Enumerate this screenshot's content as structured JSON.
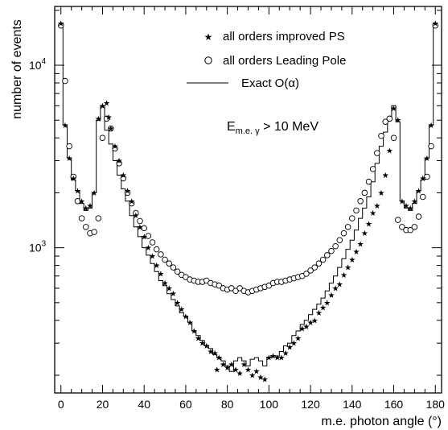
{
  "chart_data": {
    "type": "scatter",
    "xlabel": "m.e. photon angle (°)",
    "ylabel": "number of events",
    "xlim": [
      -3,
      183
    ],
    "ylim": [
      160,
      21000
    ],
    "yscale": "log",
    "x_ticks": [
      0,
      20,
      40,
      60,
      80,
      100,
      120,
      140,
      160,
      180
    ],
    "y_tick_labels": [
      {
        "value": 1000,
        "base": "10",
        "exp": "3"
      },
      {
        "value": 10000,
        "base": "10",
        "exp": "4"
      }
    ],
    "legend": {
      "placement": "top-right",
      "entries": [
        {
          "marker": "★",
          "label": "all orders improved PS"
        },
        {
          "marker": "○",
          "label": "all orders Leading Pole"
        },
        {
          "marker": "line",
          "label": "Exact O(α)"
        }
      ]
    },
    "annotation": {
      "text": "E",
      "subscript": "m.e. γ",
      "rest": " > 10 MeV"
    },
    "series": [
      {
        "name": "Exact O(α)",
        "style": "histogram",
        "edges": [
          -1,
          1,
          3,
          5,
          7,
          9,
          11,
          13,
          15,
          17,
          19,
          21,
          23,
          25,
          27,
          29,
          31,
          33,
          35,
          37,
          39,
          41,
          43,
          45,
          47,
          49,
          51,
          53,
          55,
          57,
          59,
          61,
          63,
          65,
          67,
          69,
          71,
          73,
          75,
          77,
          79,
          81,
          83,
          85,
          87,
          89,
          91,
          93,
          95,
          97,
          99,
          101,
          103,
          105,
          107,
          109,
          111,
          113,
          115,
          117,
          119,
          121,
          123,
          125,
          127,
          129,
          131,
          133,
          135,
          137,
          139,
          141,
          143,
          145,
          147,
          149,
          151,
          153,
          155,
          157,
          159,
          161,
          163,
          165,
          167,
          169,
          171,
          173,
          175,
          177,
          179,
          181
        ],
        "values": [
          17000,
          4700,
          3100,
          2350,
          2050,
          1750,
          1600,
          1650,
          2000,
          5000,
          6000,
          4400,
          3700,
          3000,
          2500,
          2100,
          1800,
          1500,
          1300,
          1150,
          1000,
          910,
          820,
          740,
          660,
          620,
          560,
          520,
          480,
          440,
          420,
          390,
          350,
          330,
          310,
          290,
          280,
          260,
          250,
          240,
          225,
          210,
          240,
          250,
          240,
          225,
          245,
          250,
          240,
          225,
          250,
          255,
          255,
          270,
          290,
          300,
          330,
          350,
          380,
          400,
          430,
          460,
          490,
          530,
          580,
          640,
          700,
          780,
          870,
          980,
          1100,
          1250,
          1450,
          1650,
          1900,
          2300,
          2900,
          3600,
          4300,
          5000,
          6000,
          4900,
          1800,
          1650,
          1600,
          1750,
          2050,
          2350,
          3100,
          4700,
          17000
        ]
      },
      {
        "name": "all orders improved PS",
        "style": "star",
        "x": [
          0,
          2,
          4,
          6,
          8,
          10,
          12,
          14,
          16,
          18,
          20,
          22,
          23,
          24,
          26,
          28,
          30,
          32,
          34,
          36,
          38,
          40,
          42,
          44,
          46,
          48,
          50,
          52,
          54,
          56,
          58,
          60,
          62,
          64,
          66,
          68,
          70,
          72,
          74,
          75,
          76,
          78,
          80,
          82,
          84,
          86,
          88,
          90,
          92,
          94,
          96,
          98,
          100,
          102,
          104,
          106,
          108,
          110,
          112,
          114,
          116,
          118,
          120,
          122,
          124,
          126,
          128,
          130,
          132,
          134,
          136,
          138,
          140,
          142,
          144,
          146,
          148,
          150,
          152,
          154,
          156,
          158,
          160,
          162,
          164,
          166,
          168,
          170,
          172,
          174,
          176,
          178,
          180
        ],
        "y": [
          17000,
          4700,
          3100,
          2400,
          2050,
          1800,
          1650,
          1700,
          2000,
          5100,
          6000,
          6200,
          5200,
          4500,
          3600,
          3000,
          2500,
          2050,
          1800,
          1500,
          1300,
          1150,
          1000,
          900,
          800,
          720,
          640,
          600,
          560,
          500,
          460,
          420,
          390,
          350,
          320,
          300,
          290,
          270,
          265,
          215,
          250,
          230,
          220,
          230,
          215,
          205,
          230,
          215,
          200,
          210,
          195,
          190,
          250,
          255,
          250,
          250,
          265,
          285,
          300,
          320,
          360,
          370,
          390,
          400,
          440,
          470,
          500,
          550,
          600,
          630,
          710,
          780,
          860,
          950,
          1050,
          1200,
          1350,
          1550,
          1700,
          2000,
          2500,
          3400,
          5800,
          5000,
          1800,
          1700,
          1650,
          1800,
          2050,
          2400,
          3100,
          4700,
          17000
        ]
      },
      {
        "name": "all orders Leading Pole",
        "style": "circle",
        "x": [
          0,
          2,
          4,
          6,
          8,
          10,
          12,
          14,
          16,
          18,
          20,
          22,
          24,
          26,
          28,
          30,
          32,
          34,
          36,
          38,
          40,
          42,
          44,
          46,
          48,
          50,
          52,
          54,
          56,
          58,
          60,
          62,
          64,
          66,
          68,
          70,
          72,
          74,
          76,
          78,
          80,
          82,
          84,
          86,
          88,
          90,
          92,
          94,
          96,
          98,
          100,
          102,
          104,
          106,
          108,
          110,
          112,
          114,
          116,
          118,
          120,
          122,
          124,
          126,
          128,
          130,
          132,
          134,
          136,
          138,
          140,
          142,
          144,
          146,
          148,
          150,
          152,
          154,
          156,
          158,
          160,
          162,
          164,
          166,
          168,
          170,
          172,
          174,
          176,
          178,
          180
        ],
        "y": [
          16500,
          8200,
          3600,
          2450,
          1800,
          1450,
          1300,
          1200,
          1220,
          1450,
          4000,
          5100,
          4500,
          3500,
          2900,
          2400,
          2000,
          1750,
          1550,
          1400,
          1280,
          1160,
          1070,
          980,
          920,
          860,
          820,
          780,
          740,
          710,
          690,
          670,
          660,
          650,
          650,
          660,
          640,
          630,
          620,
          600,
          590,
          600,
          580,
          600,
          580,
          570,
          580,
          590,
          600,
          610,
          620,
          640,
          650,
          650,
          660,
          670,
          680,
          690,
          700,
          720,
          750,
          780,
          820,
          860,
          910,
          960,
          1020,
          1100,
          1200,
          1300,
          1450,
          1600,
          1800,
          2000,
          2300,
          2700,
          3300,
          4100,
          4900,
          5100,
          4000,
          1420,
          1300,
          1250,
          1250,
          1300,
          1480,
          1900,
          2450,
          3600,
          16500
        ]
      }
    ]
  }
}
